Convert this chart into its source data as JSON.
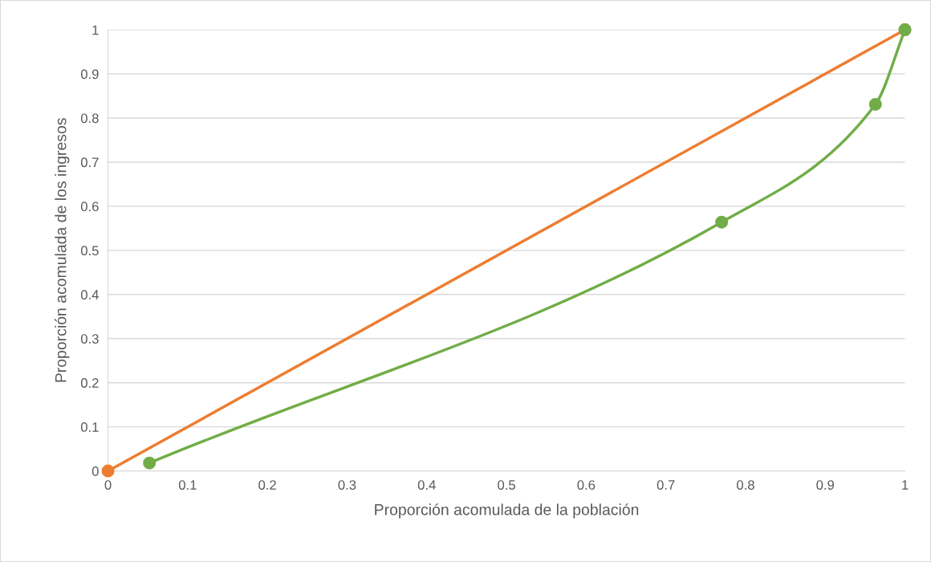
{
  "chart_data": {
    "type": "line",
    "marker": "circle",
    "xlabel": "Proporción acomulada de la población",
    "ylabel": "Proporción acomulada de los ingresos",
    "series": [
      {
        "color": "#ed7d31",
        "x": [
          0,
          1
        ],
        "values": [
          0,
          1
        ]
      },
      {
        "color": "#70ad47",
        "x": [
          0.052,
          0.77,
          0.963,
          1
        ],
        "values": [
          0.018,
          0.564,
          0.831,
          1
        ]
      }
    ],
    "xlim": [
      0,
      1
    ],
    "ylim": [
      0,
      1
    ],
    "xticks": [
      0,
      0.1,
      0.2,
      0.3,
      0.4,
      0.5,
      0.6,
      0.7,
      0.8,
      0.9,
      1
    ],
    "yticks": [
      0,
      0.1,
      0.2,
      0.3,
      0.4,
      0.5,
      0.6,
      0.7,
      0.8,
      0.9,
      1
    ],
    "grid": "y",
    "legend": false
  }
}
